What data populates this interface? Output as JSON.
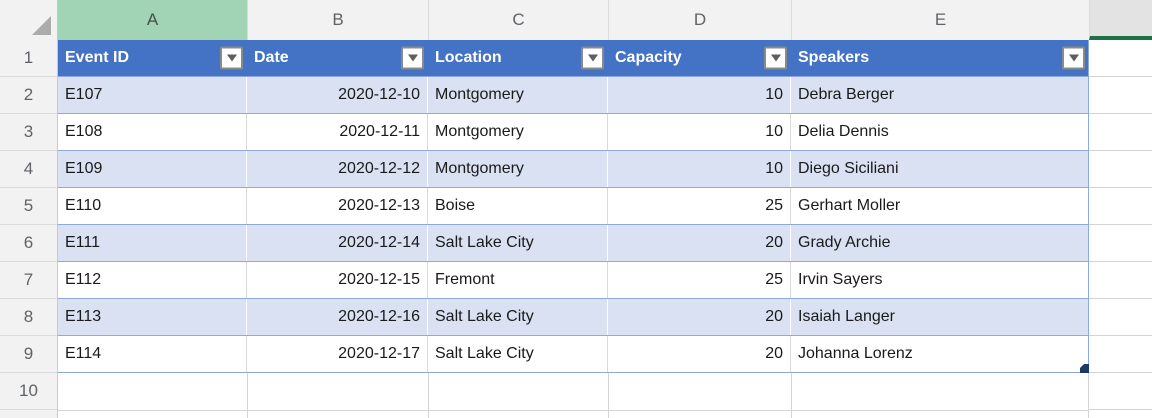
{
  "sheet": {
    "column_letters": [
      "A",
      "B",
      "C",
      "D",
      "E"
    ],
    "selected_column_letter": "A",
    "row_numbers": [
      "1",
      "2",
      "3",
      "4",
      "5",
      "6",
      "7",
      "8",
      "9",
      "10"
    ],
    "table": {
      "columns": [
        {
          "label": "Event ID"
        },
        {
          "label": "Date"
        },
        {
          "label": "Location"
        },
        {
          "label": "Capacity"
        },
        {
          "label": "Speakers"
        }
      ],
      "rows": [
        {
          "event_id": "E107",
          "date": "2020-12-10",
          "location": "Montgomery",
          "capacity": "10",
          "speaker": "Debra Berger"
        },
        {
          "event_id": "E108",
          "date": "2020-12-11",
          "location": "Montgomery",
          "capacity": "10",
          "speaker": "Delia Dennis"
        },
        {
          "event_id": "E109",
          "date": "2020-12-12",
          "location": "Montgomery",
          "capacity": "10",
          "speaker": "Diego Siciliani"
        },
        {
          "event_id": "E110",
          "date": "2020-12-13",
          "location": "Boise",
          "capacity": "25",
          "speaker": "Gerhart Moller"
        },
        {
          "event_id": "E111",
          "date": "2020-12-14",
          "location": "Salt Lake City",
          "capacity": "20",
          "speaker": "Grady Archie"
        },
        {
          "event_id": "E112",
          "date": "2020-12-15",
          "location": "Fremont",
          "capacity": "25",
          "speaker": "Irvin Sayers"
        },
        {
          "event_id": "E113",
          "date": "2020-12-16",
          "location": "Salt Lake City",
          "capacity": "20",
          "speaker": "Isaiah Langer"
        },
        {
          "event_id": "E114",
          "date": "2020-12-17",
          "location": "Salt Lake City",
          "capacity": "20",
          "speaker": "Johanna Lorenz"
        }
      ]
    },
    "colors": {
      "table_header_bg": "#4472C4",
      "banded_row_bg": "#D9E1F2",
      "row_border": "#8EA9DB",
      "selected_column_header_bg": "#A0D4B4",
      "active_cell_accent": "#1E7145",
      "fill_handle": "#1F3864"
    }
  }
}
